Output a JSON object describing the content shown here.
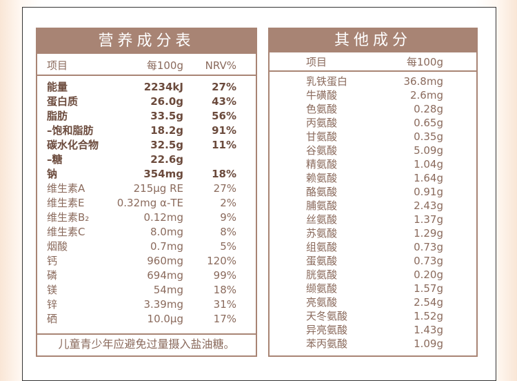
{
  "left_table": {
    "title": "营养成分表",
    "header": [
      "项目",
      "每100g",
      "NRV%"
    ],
    "rows": [
      [
        "能量",
        "2234kJ",
        "27%"
      ],
      [
        "蛋白质",
        "26.0g",
        "43%"
      ],
      [
        "脂肪",
        "33.5g",
        "56%"
      ],
      [
        "–饱和脂肪",
        "18.2g",
        "91%"
      ],
      [
        "碳水化合物",
        "32.5g",
        "11%"
      ],
      [
        "–糖",
        "22.6g",
        null
      ],
      [
        "钠",
        "354mg",
        "18%"
      ],
      [
        "维生素A",
        "215μg RE",
        "27%"
      ],
      [
        "维生素E",
        "0.32mg α-TE",
        "2%"
      ],
      [
        "维生素B₂",
        "0.12mg",
        "9%"
      ],
      [
        "维生素C",
        "8.0mg",
        "8%"
      ],
      [
        "烟酸",
        "0.7mg",
        "5%"
      ],
      [
        "钙",
        "960mg",
        "120%"
      ],
      [
        "磷",
        "694mg",
        "99%"
      ],
      [
        "镁",
        "54mg",
        "18%"
      ],
      [
        "锌",
        "3.39mg",
        "31%"
      ],
      [
        "硒",
        "10.0μg",
        "17%"
      ]
    ],
    "footer": "儿童青少年应避免过量摄入盐油糖。"
  },
  "right_table": {
    "title": "其他成分",
    "header": [
      "项目",
      "每100g"
    ],
    "rows": [
      [
        "乳铁蛋白",
        "36.8mg"
      ],
      [
        "牛磺酸",
        "2.6mg"
      ],
      [
        "色氨酸",
        "0.28g"
      ],
      [
        "丙氨酸",
        "0.65g"
      ],
      [
        "甘氨酸",
        "0.35g"
      ],
      [
        "谷氨酸",
        "5.09g"
      ],
      [
        "精氨酸",
        "1.04g"
      ],
      [
        "赖氨酸",
        "1.64g"
      ],
      [
        "酪氨酸",
        "0.91g"
      ],
      [
        "脯氨酸",
        "2.43g"
      ],
      [
        "丝氨酸",
        "1.37g"
      ],
      [
        "苏氨酸",
        "1.29g"
      ],
      [
        "组氨酸",
        "0.73g"
      ],
      [
        "蛋氨酸",
        "0.73g"
      ],
      [
        "胱氨酸",
        "0.20g"
      ],
      [
        "缬氨酸",
        "1.57g"
      ],
      [
        "亮氨酸",
        "2.54g"
      ],
      [
        "天冬氨酸",
        "1.52g"
      ],
      [
        "异亮氨酸",
        "1.43g"
      ],
      [
        "苯丙氨酸",
        "1.09g"
      ]
    ]
  }
}
